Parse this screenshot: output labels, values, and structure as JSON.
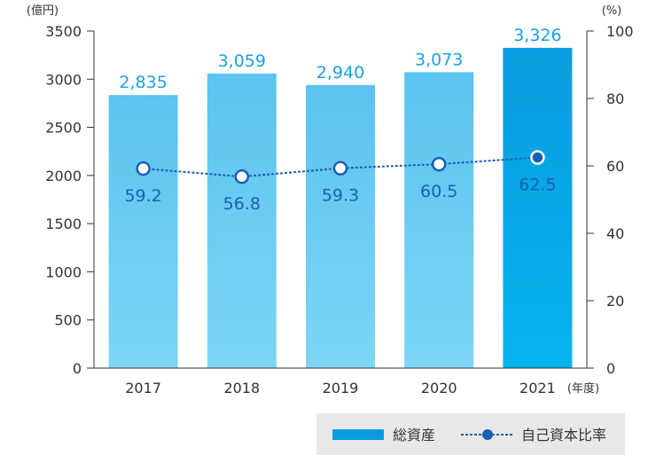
{
  "chart_data": {
    "type": "bar",
    "categories": [
      "2017",
      "2018",
      "2019",
      "2020",
      "2021"
    ],
    "x_unit": "(年度)",
    "series": [
      {
        "name": "総資産",
        "kind": "bar",
        "axis": "left",
        "values": [
          2835,
          3059,
          2940,
          3073,
          3326
        ],
        "labels": [
          "2,835",
          "3,059",
          "2,940",
          "3,073",
          "3,326"
        ]
      },
      {
        "name": "自己資本比率",
        "kind": "line",
        "axis": "right",
        "values": [
          59.2,
          56.8,
          59.3,
          60.5,
          62.5
        ],
        "labels": [
          "59.2",
          "56.8",
          "59.3",
          "60.5",
          "62.5"
        ]
      }
    ],
    "y_left": {
      "unit": "(億円)",
      "range": [
        0,
        3500
      ],
      "ticks": [
        "0",
        "500",
        "1000",
        "1500",
        "2000",
        "2500",
        "3000",
        "3500"
      ]
    },
    "y_right": {
      "unit": "(%)",
      "range": [
        0,
        100
      ],
      "ticks": [
        "0",
        "20",
        "40",
        "60",
        "80",
        "100"
      ]
    },
    "colors": {
      "bar_top": "#5ac3ef",
      "bar_bottom": "#7dd6f5",
      "highlight_top": "#0a9ce0",
      "highlight_bottom": "#04b4ee",
      "bar_label": "#1ba1e2",
      "line": "#1a5fb4",
      "point_label": "#1a5fb4",
      "axis": "#333333",
      "legend_bg": "#e8e8e8"
    },
    "legend": {
      "bar_label": "総資産",
      "line_label": "自己資本比率",
      "position": "bottom-right"
    }
  }
}
